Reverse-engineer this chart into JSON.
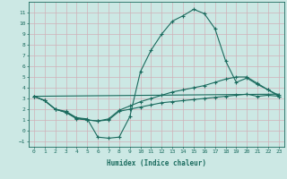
{
  "xlabel": "Humidex (Indice chaleur)",
  "background_color": "#cce8e4",
  "grid_color": "#b0d0cc",
  "line_color": "#1a6b5e",
  "xlim": [
    -0.5,
    23.5
  ],
  "ylim": [
    -1.5,
    12.0
  ],
  "yticks": [
    -1,
    0,
    1,
    2,
    3,
    4,
    5,
    6,
    7,
    8,
    9,
    10,
    11
  ],
  "xticks": [
    0,
    1,
    2,
    3,
    4,
    5,
    6,
    7,
    8,
    9,
    10,
    11,
    12,
    13,
    14,
    15,
    16,
    17,
    18,
    19,
    20,
    21,
    22,
    23
  ],
  "line1_x": [
    0,
    1,
    2,
    3,
    4,
    5,
    6,
    7,
    8,
    9,
    10,
    11,
    12,
    13,
    14,
    15,
    16,
    17,
    18,
    19,
    20,
    21,
    22,
    23
  ],
  "line1_y": [
    3.2,
    2.8,
    2.0,
    1.8,
    1.2,
    1.1,
    -0.6,
    -0.7,
    -0.6,
    1.3,
    5.5,
    7.5,
    9.0,
    10.2,
    10.7,
    11.3,
    10.9,
    9.5,
    6.5,
    4.5,
    4.9,
    4.3,
    3.8,
    3.2
  ],
  "line2_x": [
    0,
    1,
    2,
    3,
    4,
    5,
    6,
    7,
    8,
    9,
    10,
    11,
    12,
    13,
    14,
    15,
    16,
    17,
    18,
    19,
    20,
    21,
    22,
    23
  ],
  "line2_y": [
    3.2,
    2.8,
    2.0,
    1.7,
    1.2,
    1.0,
    0.9,
    1.1,
    1.9,
    2.3,
    2.7,
    3.0,
    3.3,
    3.6,
    3.8,
    4.0,
    4.2,
    4.5,
    4.8,
    5.0,
    5.0,
    4.4,
    3.8,
    3.3
  ],
  "line3_x": [
    0,
    23
  ],
  "line3_y": [
    3.2,
    3.4
  ],
  "line4_x": [
    0,
    1,
    2,
    3,
    4,
    5,
    6,
    7,
    8,
    9,
    10,
    11,
    12,
    13,
    14,
    15,
    16,
    17,
    18,
    19,
    20,
    21,
    22,
    23
  ],
  "line4_y": [
    3.2,
    2.8,
    2.0,
    1.7,
    1.1,
    1.0,
    0.9,
    1.0,
    1.8,
    2.0,
    2.2,
    2.4,
    2.6,
    2.7,
    2.8,
    2.9,
    3.0,
    3.1,
    3.2,
    3.3,
    3.4,
    3.2,
    3.3,
    3.2
  ]
}
